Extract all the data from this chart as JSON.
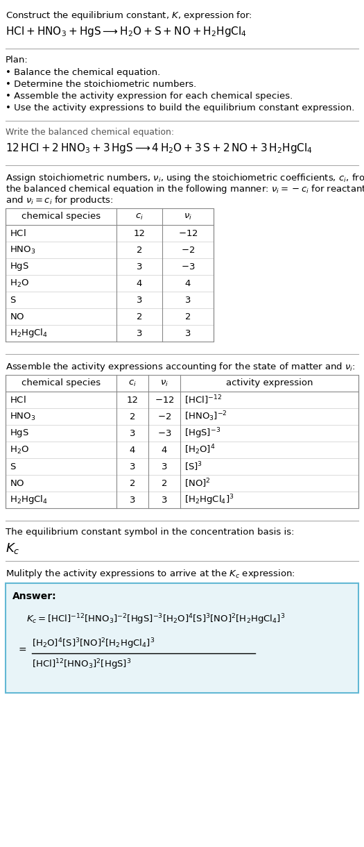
{
  "bg_color": "#ffffff",
  "text_color": "#000000",
  "title_line1": "Construct the equilibrium constant, $K$, expression for:",
  "title_line2_plain": "HCl + HNO",
  "plan_header": "Plan:",
  "balanced_header": "Write the balanced chemical equation:",
  "stoich_cols": [
    "chemical species",
    "$c_i$",
    "$\\nu_i$"
  ],
  "stoich_rows": [
    [
      "HCl",
      "12",
      "-12"
    ],
    [
      "HNO3",
      "2",
      "-2"
    ],
    [
      "HgS",
      "3",
      "-3"
    ],
    [
      "H2O",
      "4",
      "4"
    ],
    [
      "S",
      "3",
      "3"
    ],
    [
      "NO",
      "2",
      "2"
    ],
    [
      "H2HgCl4",
      "3",
      "3"
    ]
  ],
  "activity_cols": [
    "chemical species",
    "$c_i$",
    "$\\nu_i$",
    "activity expression"
  ],
  "activity_rows": [
    [
      "HCl",
      "12",
      "-12",
      "[HCl]^{-12}"
    ],
    [
      "HNO3",
      "2",
      "-2",
      "[HNO3]^{-2}"
    ],
    [
      "HgS",
      "3",
      "-3",
      "[HgS]^{-3}"
    ],
    [
      "H2O",
      "4",
      "4",
      "[H2O]^{4}"
    ],
    [
      "S",
      "3",
      "3",
      "[S]^{3}"
    ],
    [
      "NO",
      "2",
      "2",
      "[NO]^{2}"
    ],
    [
      "H2HgCl4",
      "3",
      "3",
      "[H2HgCl4]^{3}"
    ]
  ],
  "kc_text": "The equilibrium constant symbol in the concentration basis is:",
  "multiply_text": "Mulitply the activity expressions to arrive at the $K_c$ expression:",
  "answer_box_color": "#e8f4f8",
  "answer_box_border": "#62b8d4"
}
